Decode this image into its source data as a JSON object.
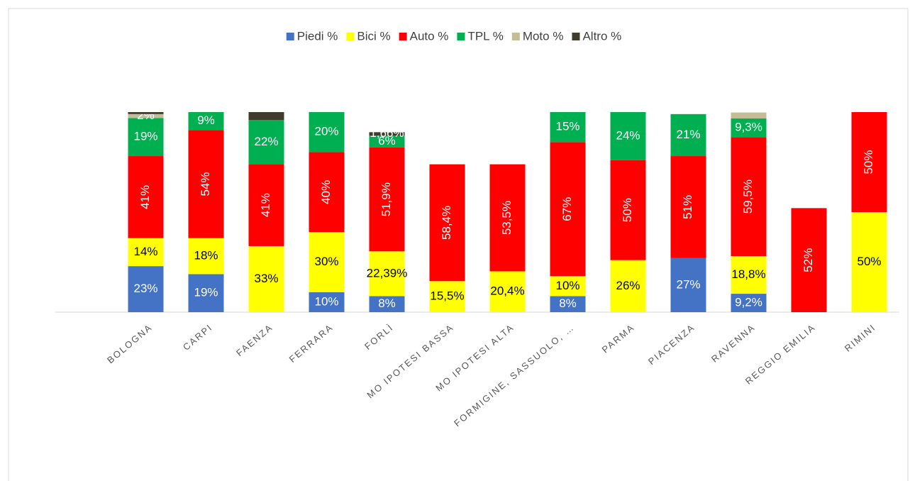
{
  "chart_data": {
    "type": "stacked_bar",
    "categories": [
      null,
      "BOLOGNA",
      "CARPI",
      "FAENZA",
      "FERRARA",
      "FORLÌ",
      "MO IPOTESI BASSA",
      "MO IPOTESI ALTA",
      "FORMIGINE, SASSUOLO, …",
      "PARMA",
      "PIACENZA",
      "RAVENNA",
      "REGGIO EMILIA",
      "RIMINI"
    ],
    "legend": "top",
    "series": [
      {
        "name": "Piedi %",
        "color": "#4472c4",
        "label_color": "#ffffff",
        "values": [
          null,
          23,
          19,
          null,
          10,
          8,
          null,
          null,
          8,
          null,
          27,
          9.2,
          null,
          null
        ],
        "value_labels": [
          null,
          "23%",
          "19%",
          null,
          "10%",
          "8%",
          null,
          null,
          "8%",
          null,
          "27%",
          "9,2%",
          null,
          null
        ]
      },
      {
        "name": "Bici %",
        "color": "#ffff00",
        "label_color": "#000000",
        "values": [
          null,
          14,
          18,
          33,
          30,
          22.39,
          15.5,
          20.4,
          10,
          26,
          null,
          18.8,
          null,
          50
        ],
        "value_labels": [
          null,
          "14%",
          "18%",
          "33%",
          "30%",
          "22,39%",
          "15,5%",
          "20,4%",
          "10%",
          "26%",
          null,
          "18,8%",
          null,
          "50%"
        ]
      },
      {
        "name": "Auto %",
        "color": "#ff0000",
        "label_color": "#ffffff",
        "rotate_labels": true,
        "values": [
          null,
          41,
          54,
          41,
          40,
          51.9,
          58.4,
          53.5,
          67,
          50,
          51,
          59.5,
          52,
          50
        ],
        "value_labels": [
          null,
          "41%",
          "54%",
          "41%",
          "40%",
          "51,9%",
          "58,4%",
          "53,5%",
          "67%",
          "50%",
          "51%",
          "59,5%",
          "52%",
          "50%"
        ]
      },
      {
        "name": "TPL %",
        "color": "#00b050",
        "label_color": "#ffffff",
        "values": [
          null,
          19,
          9,
          22,
          20,
          6,
          null,
          null,
          15,
          24,
          21,
          9.3,
          null,
          null
        ],
        "value_labels": [
          null,
          "19%",
          "9%",
          "22%",
          "20%",
          "6%",
          null,
          null,
          "15%",
          "24%",
          "21%",
          "9,3%",
          null,
          null
        ]
      },
      {
        "name": "Moto %",
        "color": "#c4bd97",
        "label_color": "#ffffff",
        "values": [
          null,
          2,
          null,
          null,
          null,
          null,
          null,
          null,
          null,
          null,
          null,
          3,
          null,
          null
        ],
        "value_labels": [
          null,
          "2%",
          null,
          null,
          null,
          null,
          null,
          null,
          null,
          null,
          null,
          null,
          null,
          null
        ]
      },
      {
        "name": "Altro %",
        "color": "#403b2c",
        "label_color": "#ffffff",
        "values": [
          null,
          1,
          null,
          4,
          null,
          1.66,
          null,
          null,
          null,
          null,
          null,
          null,
          null,
          null
        ],
        "value_labels": [
          null,
          null,
          null,
          null,
          null,
          "1,66%",
          null,
          null,
          null,
          null,
          null,
          null,
          null,
          null
        ]
      }
    ]
  }
}
